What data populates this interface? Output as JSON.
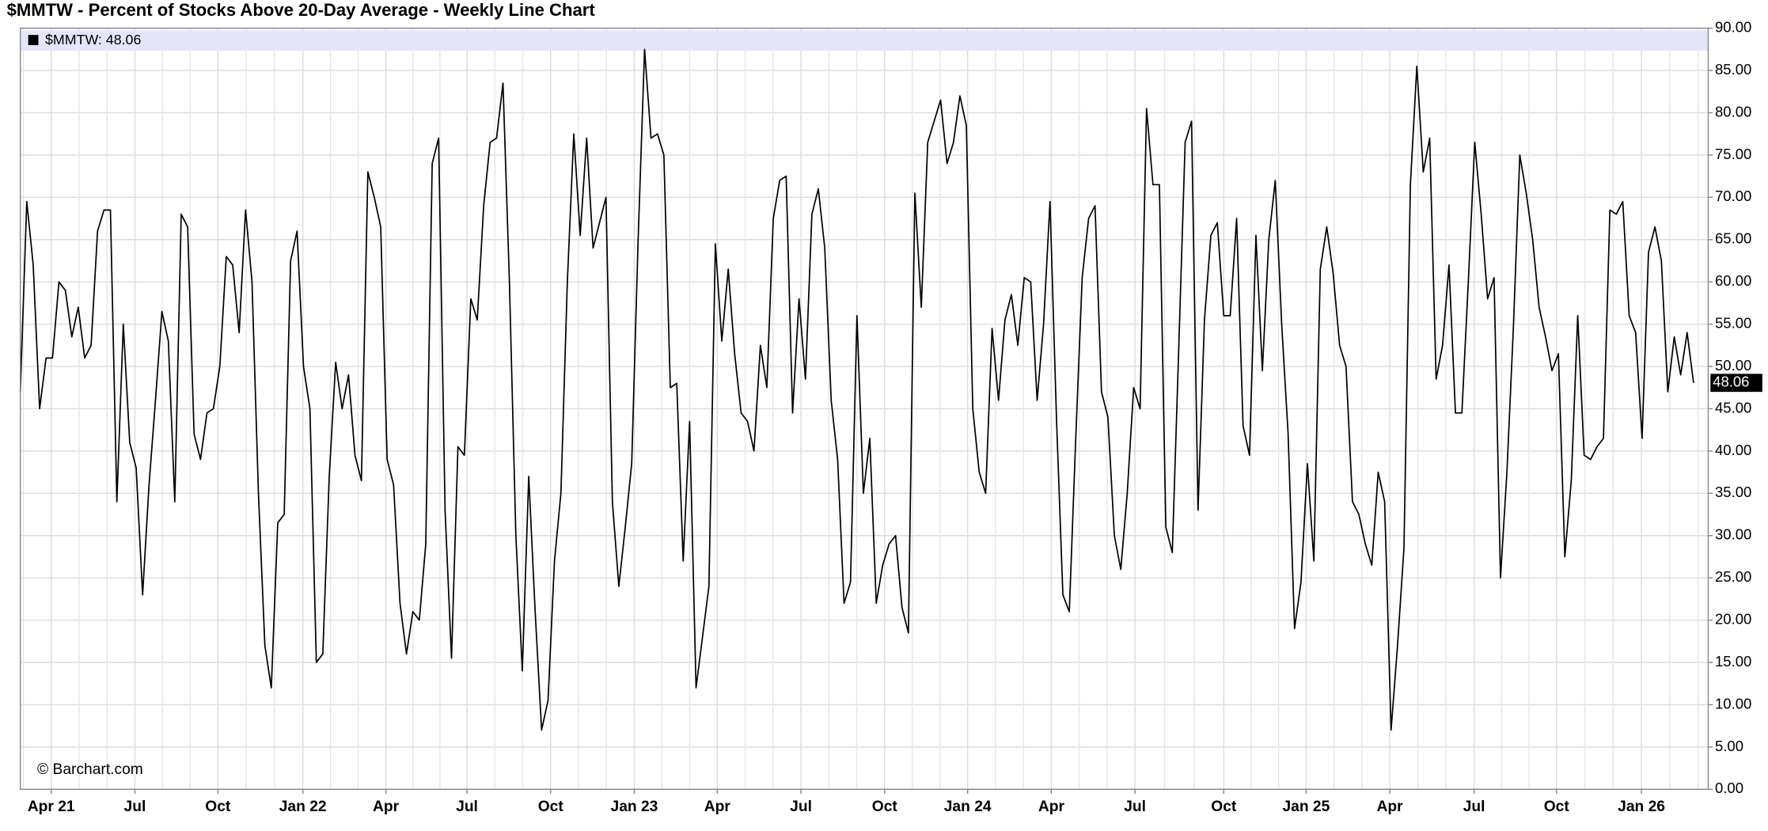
{
  "chart_data": {
    "type": "line",
    "title": "$MMTW - Percent of Stocks Above 20-Day Average - Weekly Line Chart",
    "legend": "$MMTW: 48.06",
    "credit": "© Barchart.com",
    "series": [
      {
        "name": "$MMTW",
        "color": "#000000",
        "values": [
          47,
          69.5,
          62,
          45,
          51,
          51,
          60,
          59,
          53.5,
          57,
          51,
          52.5,
          66,
          68.5,
          68.5,
          34,
          55,
          41,
          38,
          23,
          36,
          46,
          56.5,
          53,
          34,
          68,
          66.5,
          42,
          39,
          44.5,
          45,
          50,
          63,
          62,
          54,
          68.5,
          60,
          35,
          17,
          12,
          31.5,
          32.5,
          62.5,
          66,
          50,
          45,
          15,
          16,
          37,
          50.5,
          45,
          49,
          39.5,
          36.5,
          73,
          70,
          66.5,
          39,
          36,
          22,
          16,
          21,
          20,
          29,
          74,
          77,
          33,
          15.5,
          40.5,
          39.5,
          58,
          55.5,
          69,
          76.5,
          77,
          83.5,
          60,
          30,
          14,
          37,
          21,
          7,
          10.5,
          27,
          35,
          60,
          77.5,
          65.5,
          77,
          64,
          67,
          70,
          34,
          24,
          31,
          38.5,
          65,
          87.5,
          77,
          77.5,
          75,
          47.5,
          48,
          27,
          43.5,
          12,
          18,
          24,
          64.5,
          53,
          61.5,
          51.5,
          44.5,
          43.5,
          40,
          52.5,
          47.5,
          67.5,
          72,
          72.5,
          44.5,
          58,
          48.5,
          68,
          71,
          64,
          46,
          39,
          22,
          24.5,
          56,
          35,
          41.5,
          22,
          26.5,
          29,
          30,
          21.5,
          18.5,
          70.5,
          57,
          76.5,
          79,
          81.5,
          74,
          76.5,
          82,
          78.5,
          45,
          37.5,
          35,
          54.5,
          46,
          55.5,
          58.5,
          52.5,
          60.5,
          60,
          46,
          55,
          69.5,
          44,
          23,
          21,
          41.5,
          60.5,
          67.5,
          69,
          47,
          44,
          30,
          26,
          35,
          47.5,
          45,
          80.5,
          71.5,
          71.5,
          31,
          28,
          52,
          76.5,
          79,
          33,
          55.5,
          65.5,
          67,
          56,
          56,
          67.5,
          43,
          39.5,
          65.5,
          49.5,
          65,
          72,
          55,
          42,
          19,
          24.5,
          38.5,
          27,
          61.5,
          66.5,
          61,
          52.5,
          50,
          34,
          32.5,
          29,
          26.5,
          37.5,
          34,
          7,
          17,
          28.5,
          71.5,
          85.5,
          73,
          77,
          48.5,
          52.5,
          62,
          44.5,
          44.5,
          60,
          76.5,
          68,
          58,
          60.5,
          25,
          37.5,
          54.5,
          75,
          70.5,
          65,
          57,
          53.5,
          49.5,
          51.5,
          27.5,
          36.5,
          56,
          39.5,
          39,
          40.5,
          41.5,
          68.5,
          68,
          69.5,
          56,
          54,
          41.5,
          63.5,
          66.5,
          62.5,
          47,
          53.5,
          49,
          54,
          48.06
        ],
        "value_labels": {
          "260": "48.06"
        }
      }
    ],
    "xlim": [
      0,
      260
    ],
    "xticks": [
      {
        "value": 4.8,
        "label": "Apr 21"
      },
      {
        "value": 17.8,
        "label": "Jul"
      },
      {
        "value": 30.7,
        "label": "Oct"
      },
      {
        "value": 43.9,
        "label": "Jan 22"
      },
      {
        "value": 56.8,
        "label": "Apr"
      },
      {
        "value": 69.4,
        "label": "Jul"
      },
      {
        "value": 82.4,
        "label": "Oct"
      },
      {
        "value": 95.4,
        "label": "Jan 23"
      },
      {
        "value": 108.3,
        "label": "Apr"
      },
      {
        "value": 121.3,
        "label": "Jul"
      },
      {
        "value": 134.3,
        "label": "Oct"
      },
      {
        "value": 147.2,
        "label": "Jan 24"
      },
      {
        "value": 160.2,
        "label": "Apr"
      },
      {
        "value": 173.2,
        "label": "Jul"
      },
      {
        "value": 187.0,
        "label": "Oct"
      },
      {
        "value": 199.8,
        "label": "Jan 25"
      },
      {
        "value": 212.8,
        "label": "Apr"
      },
      {
        "value": 225.9,
        "label": "Jul"
      },
      {
        "value": 238.7,
        "label": "Oct"
      },
      {
        "value": 251.9,
        "label": "Jan 26"
      }
    ],
    "ylim": [
      0,
      90
    ],
    "yticks": [
      {
        "value": 0,
        "label": "0.00"
      },
      {
        "value": 5,
        "label": "5.00"
      },
      {
        "value": 10,
        "label": "10.00"
      },
      {
        "value": 15,
        "label": "15.00"
      },
      {
        "value": 20,
        "label": "20.00"
      },
      {
        "value": 25,
        "label": "25.00"
      },
      {
        "value": 30,
        "label": "30.00"
      },
      {
        "value": 35,
        "label": "35.00"
      },
      {
        "value": 40,
        "label": "40.00"
      },
      {
        "value": 45,
        "label": "45.00"
      },
      {
        "value": 50,
        "label": "50.00"
      },
      {
        "value": 55,
        "label": "55.00"
      },
      {
        "value": 60,
        "label": "60.00"
      },
      {
        "value": 65,
        "label": "65.00"
      },
      {
        "value": 70,
        "label": "70.00"
      },
      {
        "value": 75,
        "label": "75.00"
      },
      {
        "value": 80,
        "label": "80.00"
      },
      {
        "value": 85,
        "label": "85.00"
      },
      {
        "value": 90,
        "label": "90.00"
      }
    ],
    "y_axis_side": "right",
    "grid": true
  }
}
